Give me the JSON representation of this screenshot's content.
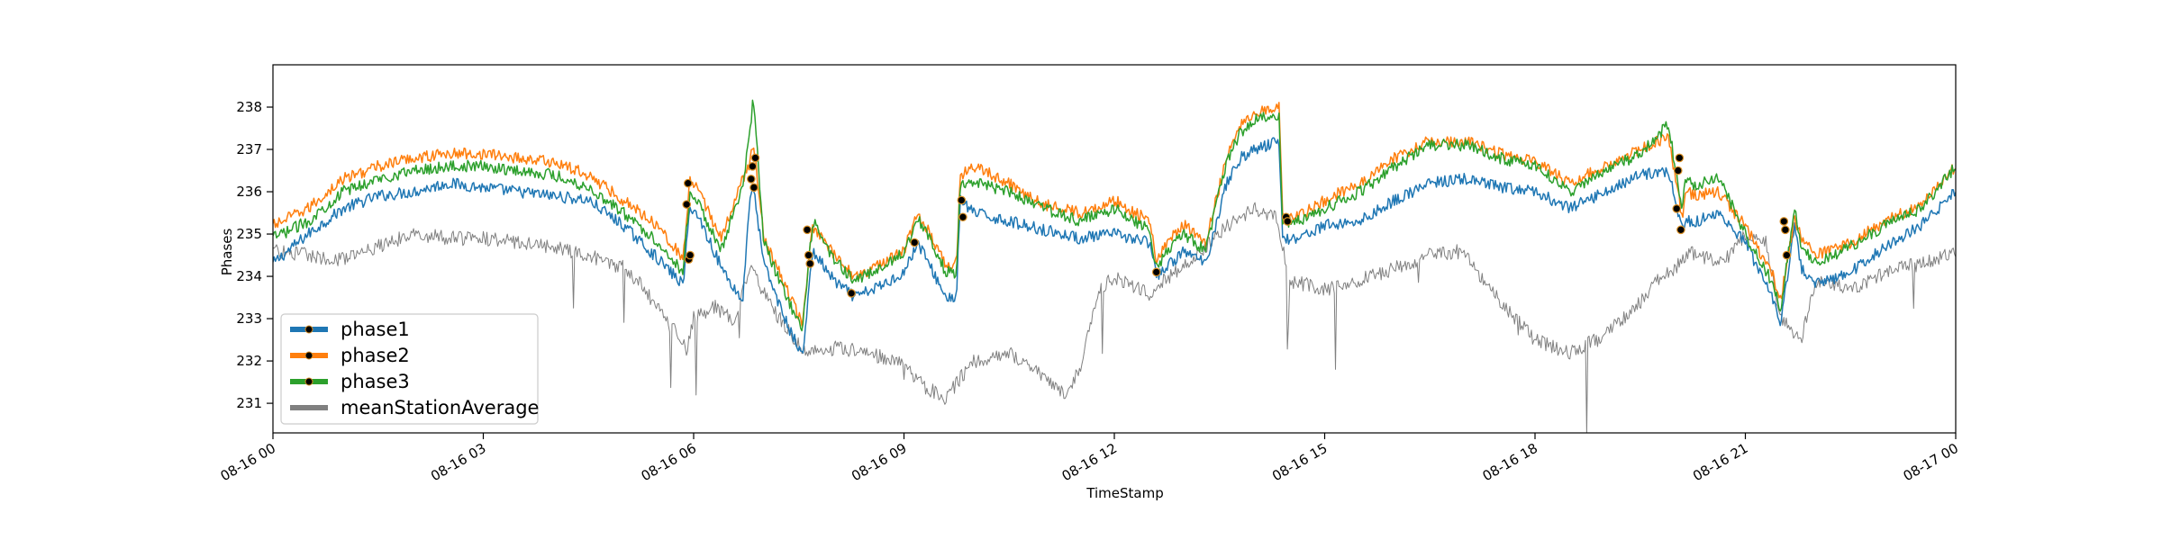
{
  "chart_data": {
    "type": "line",
    "title": "",
    "xlabel": "TimeStamp",
    "ylabel": "Phases",
    "xlim": [
      "08-16 00",
      "08-17 00"
    ],
    "ylim": [
      230.3,
      239.0
    ],
    "x_ticks": [
      "08-16 00",
      "08-16 03",
      "08-16 06",
      "08-16 09",
      "08-16 12",
      "08-16 15",
      "08-16 18",
      "08-16 21",
      "08-17 00"
    ],
    "x_tick_hours": [
      0,
      3,
      6,
      9,
      12,
      15,
      18,
      21,
      24
    ],
    "y_ticks": [
      231,
      232,
      233,
      234,
      235,
      236,
      237,
      238
    ],
    "grid": false,
    "legend_position": "lower-left",
    "x_unit": "hour of 08-16",
    "series": [
      {
        "name": "phase1",
        "color": "#1f77b4",
        "x": [
          0,
          0.5,
          1,
          1.5,
          2,
          2.5,
          3,
          3.5,
          4,
          4.5,
          5,
          5.5,
          5.85,
          5.95,
          6.1,
          6.4,
          6.7,
          6.8,
          6.85,
          7.0,
          7.3,
          7.55,
          7.7,
          8.0,
          8.3,
          8.7,
          9.0,
          9.2,
          9.6,
          9.75,
          9.8,
          10.0,
          10.5,
          11.0,
          11.5,
          12.0,
          12.5,
          12.6,
          12.8,
          13.0,
          13.3,
          13.6,
          13.8,
          14.0,
          14.35,
          14.4,
          14.6,
          15.0,
          15.5,
          16.0,
          16.5,
          17.0,
          17.5,
          18.0,
          18.5,
          19.0,
          19.5,
          19.9,
          20.1,
          20.15,
          20.3,
          20.6,
          21.0,
          21.4,
          21.5,
          21.7,
          21.8,
          22.0,
          22.5,
          23.0,
          23.5,
          24.0
        ],
        "y": [
          234.3,
          235.0,
          235.6,
          235.9,
          236.0,
          236.2,
          236.1,
          236.0,
          235.9,
          235.8,
          235.2,
          234.4,
          233.8,
          235.7,
          235.3,
          234.2,
          233.4,
          235.9,
          236.1,
          234.3,
          233.0,
          232.1,
          234.6,
          233.9,
          233.5,
          233.8,
          234.1,
          234.8,
          233.5,
          233.5,
          235.8,
          235.5,
          235.3,
          235.1,
          234.9,
          235.0,
          234.8,
          234.0,
          234.3,
          234.6,
          234.3,
          236.2,
          236.8,
          237.0,
          237.2,
          234.9,
          234.9,
          235.2,
          235.3,
          235.8,
          236.2,
          236.3,
          236.1,
          236.0,
          235.6,
          236.0,
          236.4,
          236.5,
          235.1,
          235.3,
          235.3,
          235.5,
          234.8,
          233.4,
          232.8,
          235.2,
          234.2,
          233.8,
          234.1,
          234.7,
          235.2,
          236.0
        ]
      },
      {
        "name": "phase2",
        "color": "#ff7f0e",
        "x": [
          0,
          0.5,
          1,
          1.5,
          2,
          2.5,
          3,
          3.5,
          4,
          4.5,
          5,
          5.5,
          5.85,
          5.95,
          6.1,
          6.4,
          6.7,
          6.8,
          6.85,
          7.0,
          7.3,
          7.55,
          7.7,
          8.0,
          8.3,
          8.7,
          9.0,
          9.2,
          9.6,
          9.75,
          9.8,
          10.0,
          10.5,
          11.0,
          11.5,
          12.0,
          12.5,
          12.6,
          12.8,
          13.0,
          13.3,
          13.6,
          13.8,
          14.0,
          14.35,
          14.4,
          14.6,
          15.0,
          15.5,
          16.0,
          16.5,
          17.0,
          17.5,
          18.0,
          18.5,
          19.0,
          19.5,
          19.9,
          20.1,
          20.15,
          20.3,
          20.6,
          21.0,
          21.4,
          21.5,
          21.7,
          21.8,
          22.0,
          22.5,
          23.0,
          23.5,
          24.0
        ],
        "y": [
          235.2,
          235.6,
          236.3,
          236.6,
          236.8,
          236.9,
          236.9,
          236.8,
          236.7,
          236.4,
          235.8,
          235.2,
          234.4,
          236.3,
          235.9,
          234.9,
          236.3,
          236.7,
          237.2,
          234.9,
          233.8,
          232.9,
          235.2,
          234.5,
          234.0,
          234.3,
          234.6,
          235.5,
          234.3,
          234.3,
          236.4,
          236.6,
          236.2,
          235.7,
          235.5,
          235.8,
          235.3,
          234.4,
          234.9,
          235.2,
          234.8,
          236.8,
          237.6,
          237.9,
          238.0,
          235.4,
          235.4,
          235.8,
          236.2,
          236.8,
          237.2,
          237.2,
          236.9,
          236.7,
          236.2,
          236.6,
          237.0,
          237.3,
          235.4,
          236.0,
          235.9,
          236.0,
          235.2,
          234.0,
          233.4,
          235.4,
          234.9,
          234.5,
          234.8,
          235.3,
          235.7,
          236.6
        ]
      },
      {
        "name": "phase3",
        "color": "#2ca02c",
        "x": [
          0,
          0.5,
          1,
          1.5,
          2,
          2.5,
          3,
          3.5,
          4,
          4.5,
          5,
          5.5,
          5.85,
          5.95,
          6.1,
          6.4,
          6.7,
          6.8,
          6.85,
          7.0,
          7.3,
          7.55,
          7.7,
          8.0,
          8.3,
          8.7,
          9.0,
          9.2,
          9.6,
          9.75,
          9.8,
          10.0,
          10.5,
          11.0,
          11.5,
          12.0,
          12.5,
          12.6,
          12.8,
          13.0,
          13.3,
          13.6,
          13.8,
          14.0,
          14.35,
          14.4,
          14.6,
          15.0,
          15.5,
          16.0,
          16.5,
          17.0,
          17.5,
          18.0,
          18.5,
          19.0,
          19.5,
          19.9,
          20.1,
          20.15,
          20.3,
          20.6,
          21.0,
          21.4,
          21.5,
          21.7,
          21.8,
          22.0,
          22.5,
          23.0,
          23.5,
          24.0
        ],
        "y": [
          234.9,
          235.3,
          236.0,
          236.3,
          236.5,
          236.6,
          236.6,
          236.5,
          236.4,
          236.1,
          235.5,
          234.8,
          234.1,
          236.1,
          235.6,
          234.6,
          236.2,
          237.3,
          238.3,
          234.8,
          233.6,
          232.7,
          235.3,
          234.4,
          233.9,
          234.2,
          234.6,
          235.4,
          234.1,
          234.1,
          236.2,
          236.2,
          236.0,
          235.6,
          235.3,
          235.6,
          235.1,
          234.2,
          234.7,
          235.0,
          234.6,
          236.7,
          237.4,
          237.7,
          237.8,
          235.3,
          235.3,
          235.6,
          236.0,
          236.6,
          237.1,
          237.1,
          236.8,
          236.6,
          236.0,
          236.5,
          236.9,
          237.6,
          235.6,
          236.3,
          236.1,
          236.4,
          235.0,
          233.8,
          233.2,
          235.6,
          234.7,
          234.3,
          234.7,
          235.2,
          235.6,
          236.6
        ]
      },
      {
        "name": "meanStationAverage",
        "color": "#808080",
        "x": [
          0,
          0.5,
          1,
          1.5,
          2,
          2.5,
          3,
          3.5,
          4,
          4.5,
          5,
          5.3,
          5.6,
          5.9,
          6.0,
          6.3,
          6.6,
          6.8,
          7.0,
          7.3,
          7.6,
          8.0,
          8.5,
          9.0,
          9.3,
          9.6,
          9.8,
          10.0,
          10.5,
          11.0,
          11.3,
          11.5,
          11.8,
          12.0,
          12.5,
          13.0,
          13.3,
          13.6,
          14.0,
          14.3,
          14.5,
          15.0,
          15.5,
          16.0,
          16.5,
          17.0,
          17.3,
          17.6,
          18.0,
          18.5,
          19.0,
          19.5,
          19.8,
          20.0,
          20.2,
          20.5,
          20.8,
          21.0,
          21.3,
          21.5,
          21.8,
          22.0,
          22.5,
          23.0,
          23.5,
          24.0
        ],
        "y": [
          234.6,
          234.5,
          234.4,
          234.7,
          235.0,
          234.9,
          234.9,
          234.8,
          234.7,
          234.5,
          234.2,
          233.7,
          233.0,
          232.3,
          233.0,
          233.3,
          232.9,
          234.3,
          233.6,
          232.8,
          232.2,
          232.3,
          232.2,
          231.9,
          231.4,
          231.1,
          231.6,
          232.0,
          232.2,
          231.6,
          231.2,
          231.8,
          233.7,
          234.0,
          233.6,
          234.3,
          234.7,
          235.2,
          235.6,
          235.4,
          233.9,
          233.7,
          233.9,
          234.2,
          234.5,
          234.6,
          233.8,
          233.2,
          232.5,
          232.2,
          232.6,
          233.4,
          234.0,
          234.2,
          234.6,
          234.4,
          234.5,
          235.0,
          234.8,
          233.0,
          232.5,
          233.9,
          233.7,
          234.1,
          234.3,
          234.6
        ]
      }
    ],
    "event_markers": [
      {
        "x": 5.9,
        "y": 235.7
      },
      {
        "x": 5.92,
        "y": 236.2
      },
      {
        "x": 5.93,
        "y": 234.4
      },
      {
        "x": 5.95,
        "y": 234.5
      },
      {
        "x": 6.82,
        "y": 236.3
      },
      {
        "x": 6.84,
        "y": 236.6
      },
      {
        "x": 6.86,
        "y": 236.1
      },
      {
        "x": 6.88,
        "y": 236.8
      },
      {
        "x": 7.62,
        "y": 235.1
      },
      {
        "x": 7.64,
        "y": 234.5
      },
      {
        "x": 7.66,
        "y": 234.3
      },
      {
        "x": 8.25,
        "y": 233.6
      },
      {
        "x": 9.15,
        "y": 234.8
      },
      {
        "x": 9.82,
        "y": 235.8
      },
      {
        "x": 9.84,
        "y": 235.4
      },
      {
        "x": 12.6,
        "y": 234.1
      },
      {
        "x": 14.45,
        "y": 235.4
      },
      {
        "x": 14.47,
        "y": 235.3
      },
      {
        "x": 20.02,
        "y": 235.6
      },
      {
        "x": 20.04,
        "y": 236.5
      },
      {
        "x": 20.06,
        "y": 236.8
      },
      {
        "x": 20.08,
        "y": 235.1
      },
      {
        "x": 21.55,
        "y": 235.3
      },
      {
        "x": 21.57,
        "y": 235.1
      },
      {
        "x": 21.59,
        "y": 234.5
      }
    ]
  }
}
